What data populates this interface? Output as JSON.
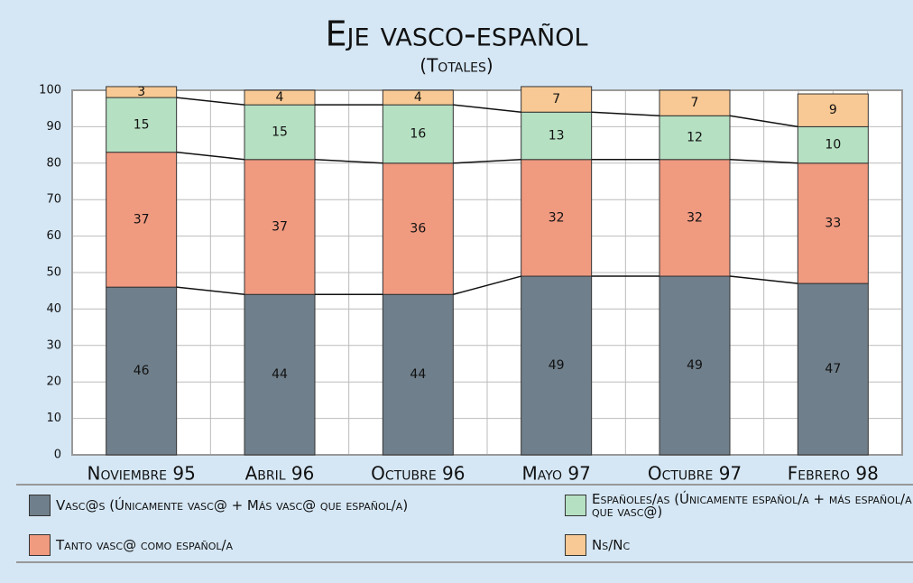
{
  "chart_data": {
    "type": "stacked_bar",
    "title": "Eje vasco-español",
    "subtitle": "(Totales)",
    "categories": [
      "Noviembre 95",
      "Abril 96",
      "Octubre 96",
      "Mayo 97",
      "Octubre 97",
      "Febrero 98"
    ],
    "series": [
      {
        "name": "Vasc@s (Únicamente vasc@ + Más vasc@ que español/a)",
        "color": "#6f7f8b",
        "values": [
          46,
          44,
          44,
          49,
          49,
          47
        ]
      },
      {
        "name": "Tanto vasc@ como español/a",
        "color": "#f09a80",
        "values": [
          37,
          37,
          36,
          32,
          32,
          33
        ]
      },
      {
        "name": "Españoles/as (Únicamente español/a + más español/a que vasc@)",
        "color": "#b5e0c2",
        "values": [
          15,
          15,
          16,
          13,
          12,
          10
        ]
      },
      {
        "name": "Ns/Nc",
        "color": "#f8c994",
        "values": [
          3,
          4,
          4,
          7,
          7,
          9
        ]
      }
    ],
    "ylim": [
      0,
      100
    ],
    "yticks": [
      0,
      10,
      20,
      30,
      40,
      50,
      60,
      70,
      80,
      90,
      100
    ],
    "grid": true
  }
}
